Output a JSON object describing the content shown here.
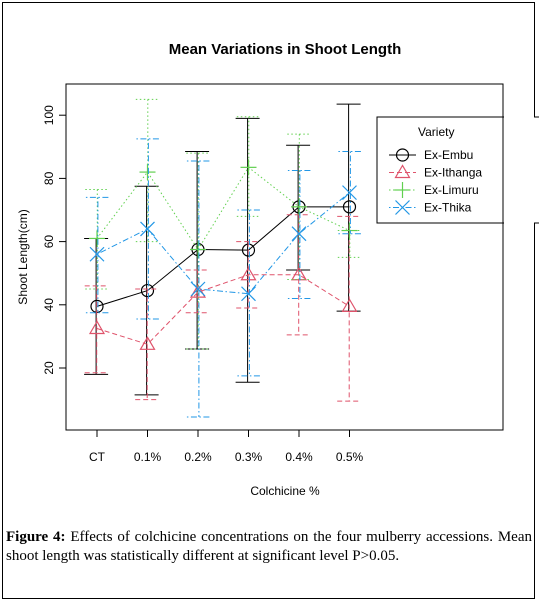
{
  "chart_data": {
    "type": "line",
    "title": "Mean Variations in Shoot Length",
    "xlabel": "Colchicine %",
    "ylabel": "Shoot Length(cm)",
    "categories": [
      "CT",
      "0.1%",
      "0.2%",
      "0.3%",
      "0.4%",
      "0.5%"
    ],
    "y_ticks": [
      "20",
      "40",
      "60",
      "80",
      "100"
    ],
    "ylim": [
      0,
      110
    ],
    "legend": {
      "title": "Variety",
      "position": "top-right"
    },
    "series": [
      {
        "name": "Ex-Embu",
        "color": "#000000",
        "marker": "circle",
        "line": "solid",
        "values": [
          39.5,
          44.5,
          57.5,
          57.3,
          71.0,
          71.0
        ],
        "upper": [
          61.0,
          77.5,
          88.5,
          99.0,
          90.5,
          103.5
        ],
        "lower": [
          18.0,
          11.5,
          26.0,
          15.5,
          51.0,
          38.0
        ]
      },
      {
        "name": "Ex-Ithanga",
        "color": "#df536b",
        "marker": "triangle",
        "line": "dashed",
        "values": [
          32.5,
          27.5,
          44.0,
          49.5,
          49.5,
          39.5
        ],
        "upper": [
          46.0,
          45.0,
          51.0,
          60.0,
          68.5,
          68.0
        ],
        "lower": [
          18.5,
          10.0,
          37.5,
          39.0,
          30.5,
          9.5
        ]
      },
      {
        "name": "Ex-Limuru",
        "color": "#61d04f",
        "marker": "plus",
        "line": "dotted",
        "values": [
          61.0,
          82.0,
          57.5,
          83.5,
          71.0,
          63.5
        ],
        "upper": [
          76.5,
          105.0,
          88.0,
          99.5,
          94.0,
          63.5
        ],
        "lower": [
          45.0,
          60.0,
          26.0,
          68.0,
          48.0,
          55.0
        ]
      },
      {
        "name": "Ex-Thika",
        "color": "#2297e6",
        "marker": "x",
        "line": "dotdash",
        "values": [
          56.0,
          64.0,
          45.0,
          43.5,
          62.5,
          75.5
        ],
        "upper": [
          74.0,
          92.5,
          85.5,
          70.0,
          82.5,
          88.5
        ],
        "lower": [
          37.5,
          35.5,
          4.5,
          17.5,
          42.0,
          62.5
        ]
      }
    ]
  },
  "caption": {
    "label": "Figure 4:",
    "text": " Effects of colchicine concentrations on the four mulberry accessions. Mean shoot length was statistically different at significant level P>0.05."
  }
}
